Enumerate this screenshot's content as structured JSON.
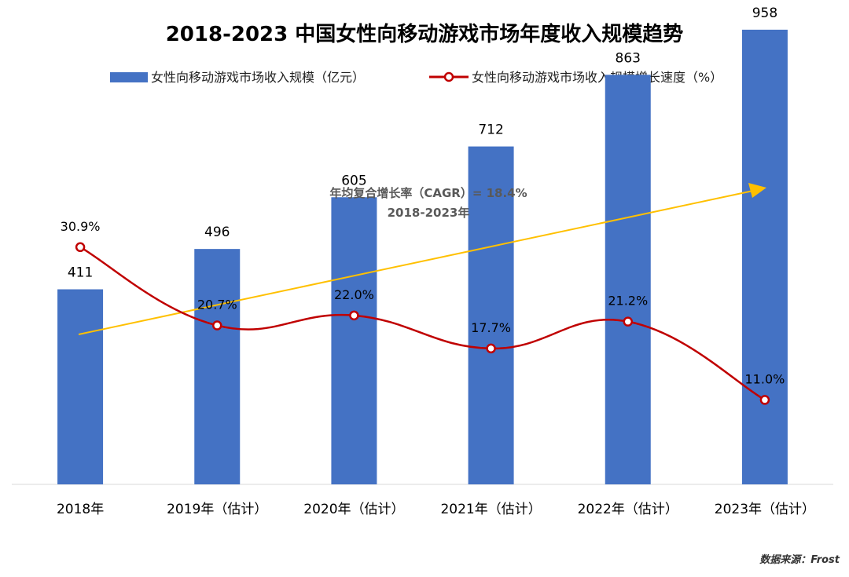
{
  "chart_data": {
    "type": "bar",
    "title": "2018-2023 中国女性向移动游戏市场年度收入规模趋势",
    "categories": [
      "2018年",
      "2019年（估计）",
      "2020年（估计）",
      "2021年（估计）",
      "2022年（估计）",
      "2023年（估计）"
    ],
    "series": [
      {
        "name": "女性向移动游戏市场收入规模（亿元）",
        "type": "bar",
        "axis": "left",
        "values": [
          411,
          496,
          605,
          712,
          863,
          958
        ],
        "labels": [
          "411",
          "496",
          "605",
          "712",
          "863",
          "958"
        ],
        "color": "#4472c4"
      },
      {
        "name": "女性向移动游戏市场收入规模增长速度（%）",
        "type": "line",
        "axis": "right",
        "values": [
          30.9,
          20.7,
          22.0,
          17.7,
          21.2,
          11.0
        ],
        "labels": [
          "30.9%",
          "20.7%",
          "22.0%",
          "17.7%",
          "21.2%",
          "11.0%"
        ],
        "color": "#c00000"
      }
    ],
    "ylim_left": [
      0,
      1100
    ],
    "ylim_right": [
      0,
      50
    ],
    "annotation": {
      "line1": "年均复合增长率（CAGR）= 18.4%",
      "line2": "2018-2023年",
      "arrow_color": "#ffc000"
    },
    "legend_position": "top",
    "grid": false
  },
  "source": "数据来源：Frost"
}
